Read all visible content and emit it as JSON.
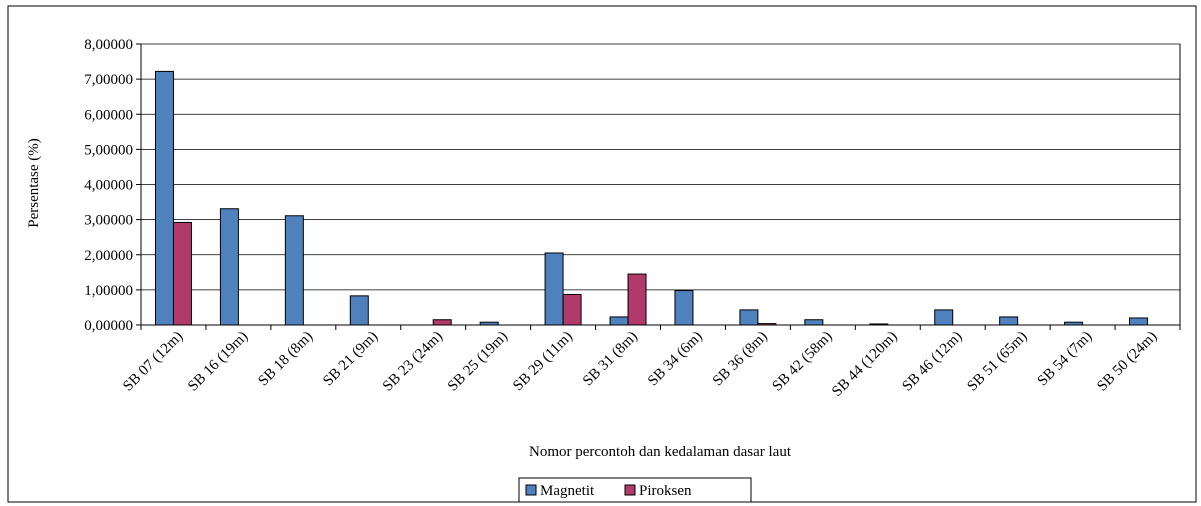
{
  "chart_data": {
    "type": "bar",
    "xlabel": "Nomor percontoh dan kedalaman dasar laut",
    "ylabel": "Persentase (%)",
    "ylim": [
      0,
      8
    ],
    "y_ticks": [
      "0,00000",
      "1,00000",
      "2,00000",
      "3,00000",
      "4,00000",
      "5,00000",
      "6,00000",
      "7,00000",
      "8,00000"
    ],
    "grid": true,
    "legend_position": "bottom",
    "categories": [
      "SB 07 (12m)",
      "SB 16 (19m)",
      "SB 18 (8m)",
      "SB 21 (9m)",
      "SB 23 (24m)",
      "SB 25 (19m)",
      "SB 29 (11m)",
      "SB 31 (8m)",
      "SB 34 (6m)",
      "SB 36 (8m)",
      "SB 42 (58m)",
      "SB 44 (120m)",
      "SB 46 (12m)",
      "SB 51 (65m)",
      "SB 54 (7m)",
      "SB 50 (24m)"
    ],
    "series": [
      {
        "name": "Magnetit",
        "color": "#4F81BD",
        "values": [
          7.22,
          3.31,
          3.11,
          0.83,
          0.0,
          0.08,
          2.05,
          0.23,
          0.98,
          0.43,
          0.15,
          0.03,
          0.43,
          0.23,
          0.08,
          0.2
        ]
      },
      {
        "name": "Piroksen",
        "color": "#C0504D",
        "fill": "#B03A6A",
        "values": [
          2.92,
          0.0,
          0.0,
          0.0,
          0.15,
          0.0,
          0.87,
          1.45,
          0.0,
          0.04,
          0.0,
          0.0,
          0.0,
          0.0,
          0.0,
          0.0
        ]
      }
    ]
  }
}
